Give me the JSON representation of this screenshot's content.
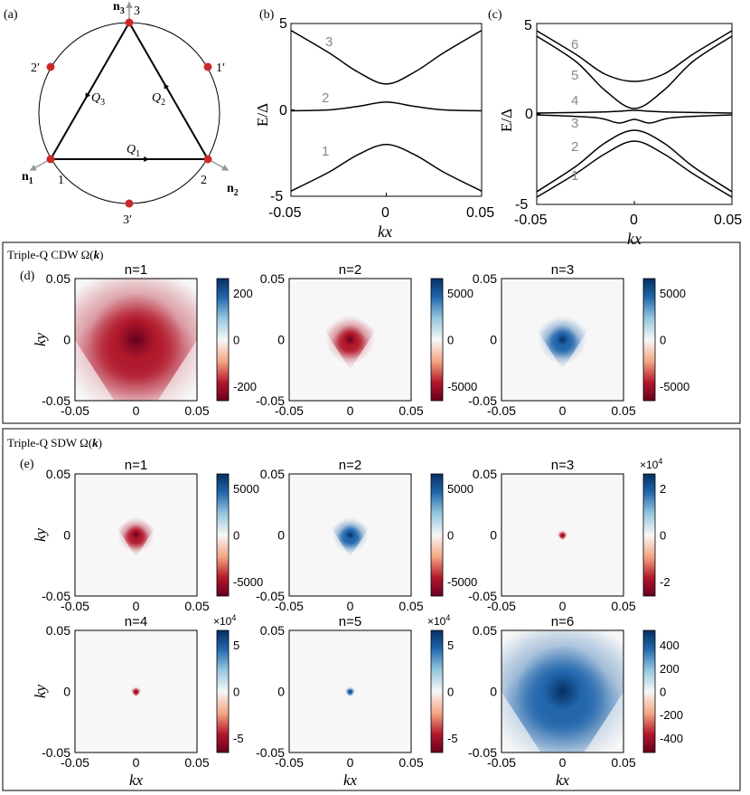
{
  "colors": {
    "red": "#b2182b",
    "white": "#f7f7f7",
    "blue": "#2166ac",
    "gray": "#888888",
    "dot": "#cc2a2a"
  },
  "panel_a": {
    "label": "(a)",
    "vertices": [
      "1",
      "2",
      "3"
    ],
    "primed": [
      "1′",
      "2′",
      "3′"
    ],
    "normals": [
      "n",
      "n",
      "n"
    ],
    "normal_subs": [
      "1",
      "2",
      "3"
    ],
    "q_labels": [
      "Q",
      "Q",
      "Q"
    ],
    "q_subs": [
      "1",
      "2",
      "3"
    ]
  },
  "panel_b": {
    "label": "(b)",
    "band_labels": [
      "1",
      "2",
      "3"
    ]
  },
  "panel_c": {
    "label": "(c)",
    "band_labels": [
      "1",
      "2",
      "3",
      "4",
      "5",
      "6"
    ]
  },
  "band_axes": {
    "ylabel": "E/Δ",
    "xlabel": "kx",
    "xticks": [
      "-0.05",
      "0",
      "0.05"
    ],
    "yticks": [
      "5",
      "0",
      "-5"
    ]
  },
  "panel_d": {
    "label": "(d)",
    "title": "Triple-Q CDW  Ω(",
    "title_k": "k",
    "title_end": ")"
  },
  "panel_e": {
    "label": "(e)",
    "title": "Triple-Q SDW  Ω(",
    "title_k": "k",
    "title_end": ")"
  },
  "map_axes": {
    "xlabel": "kx",
    "ylabel": "ky",
    "ticks": [
      "-0.05",
      "0",
      "0.05"
    ],
    "yticks": [
      "0.05",
      "0",
      "-0.05"
    ]
  },
  "chart_data": [
    {
      "type": "line",
      "title": "(b)",
      "xlabel": "kx",
      "ylabel": "E/Δ",
      "xlim": [
        -0.05,
        0.05
      ],
      "ylim": [
        -5,
        5
      ],
      "series": [
        {
          "name": "1",
          "points": [
            [
              -0.05,
              -4.7
            ],
            [
              -0.03,
              -3.6
            ],
            [
              -0.015,
              -2.6
            ],
            [
              0,
              -2.0
            ],
            [
              0.015,
              -2.6
            ],
            [
              0.03,
              -3.6
            ],
            [
              0.05,
              -4.7
            ]
          ]
        },
        {
          "name": "2",
          "points": [
            [
              -0.05,
              -0.05
            ],
            [
              -0.03,
              0.0
            ],
            [
              -0.015,
              0.2
            ],
            [
              0,
              0.45
            ],
            [
              0.015,
              0.2
            ],
            [
              0.03,
              0.0
            ],
            [
              0.05,
              -0.05
            ]
          ]
        },
        {
          "name": "3",
          "points": [
            [
              -0.05,
              4.6
            ],
            [
              -0.03,
              3.3
            ],
            [
              -0.015,
              2.2
            ],
            [
              0,
              1.5
            ],
            [
              0.015,
              2.2
            ],
            [
              0.03,
              3.3
            ],
            [
              0.05,
              4.6
            ]
          ]
        }
      ]
    },
    {
      "type": "line",
      "title": "(c)",
      "xlabel": "kx",
      "ylabel": "E/Δ",
      "xlim": [
        -0.05,
        0.05
      ],
      "ylim": [
        -5,
        5
      ],
      "series": [
        {
          "name": "1",
          "points": [
            [
              -0.05,
              -4.6
            ],
            [
              -0.03,
              -3.3
            ],
            [
              -0.015,
              -2.2
            ],
            [
              0,
              -1.5
            ],
            [
              0.015,
              -2.2
            ],
            [
              0.03,
              -3.3
            ],
            [
              0.05,
              -4.6
            ]
          ]
        },
        {
          "name": "2",
          "points": [
            [
              -0.05,
              -4.3
            ],
            [
              -0.03,
              -2.9
            ],
            [
              -0.015,
              -1.6
            ],
            [
              0,
              -0.9
            ],
            [
              0.015,
              -1.6
            ],
            [
              0.03,
              -2.9
            ],
            [
              0.05,
              -4.3
            ]
          ]
        },
        {
          "name": "3",
          "points": [
            [
              -0.05,
              -0.05
            ],
            [
              -0.02,
              -0.2
            ],
            [
              -0.008,
              -0.5
            ],
            [
              0,
              -0.3
            ],
            [
              0.008,
              -0.5
            ],
            [
              0.02,
              -0.2
            ],
            [
              0.05,
              -0.05
            ]
          ]
        },
        {
          "name": "4",
          "points": [
            [
              -0.05,
              0.05
            ],
            [
              -0.02,
              0.1
            ],
            [
              -0.008,
              0.15
            ],
            [
              0,
              0.2
            ],
            [
              0.008,
              0.15
            ],
            [
              0.02,
              0.1
            ],
            [
              0.05,
              0.05
            ]
          ]
        },
        {
          "name": "5",
          "points": [
            [
              -0.05,
              4.3
            ],
            [
              -0.03,
              2.9
            ],
            [
              -0.015,
              1.3
            ],
            [
              0,
              0.3
            ],
            [
              0.015,
              1.3
            ],
            [
              0.03,
              2.9
            ],
            [
              0.05,
              4.3
            ]
          ]
        },
        {
          "name": "6",
          "points": [
            [
              -0.05,
              4.6
            ],
            [
              -0.03,
              3.3
            ],
            [
              -0.015,
              2.2
            ],
            [
              0,
              1.8
            ],
            [
              0.015,
              2.2
            ],
            [
              0.03,
              3.3
            ],
            [
              0.05,
              4.6
            ]
          ]
        }
      ]
    },
    {
      "type": "heatmap",
      "title": "n=1",
      "group": "Triple-Q CDW",
      "xlabel": "",
      "ylabel": "ky",
      "xlim": [
        -0.05,
        0.05
      ],
      "ylim": [
        -0.05,
        0.05
      ],
      "colorbar_range": [
        -300,
        300
      ],
      "colorbar_ticks": [
        "200",
        "0",
        "-200"
      ],
      "peak_value": -300,
      "peak_kx": 0,
      "peak_ky": 0,
      "sign": "negative",
      "spread": "wide triangular"
    },
    {
      "type": "heatmap",
      "title": "n=2",
      "group": "Triple-Q CDW",
      "xlim": [
        -0.05,
        0.05
      ],
      "ylim": [
        -0.05,
        0.05
      ],
      "colorbar_range": [
        -6000,
        6000
      ],
      "colorbar_ticks": [
        "5000",
        "0",
        "-5000"
      ],
      "peak_value": -6000,
      "peak_kx": 0,
      "peak_ky": 0,
      "sign": "negative",
      "spread": "medium"
    },
    {
      "type": "heatmap",
      "title": "n=3",
      "group": "Triple-Q CDW",
      "xlim": [
        -0.05,
        0.05
      ],
      "ylim": [
        -0.05,
        0.05
      ],
      "colorbar_range": [
        -6000,
        6000
      ],
      "colorbar_ticks": [
        "5000",
        "0",
        "-5000"
      ],
      "peak_value": 6000,
      "peak_kx": 0,
      "peak_ky": 0,
      "sign": "positive",
      "spread": "medium"
    },
    {
      "type": "heatmap",
      "title": "n=1",
      "group": "Triple-Q SDW",
      "ylabel": "ky",
      "xlim": [
        -0.05,
        0.05
      ],
      "ylim": [
        -0.05,
        0.05
      ],
      "colorbar_range": [
        -7000,
        7000
      ],
      "colorbar_ticks": [
        "5000",
        "0",
        "-5000"
      ],
      "peak_value": -7000,
      "peak_kx": 0,
      "peak_ky": 0,
      "sign": "negative",
      "spread": "small"
    },
    {
      "type": "heatmap",
      "title": "n=2",
      "group": "Triple-Q SDW",
      "xlim": [
        -0.05,
        0.05
      ],
      "ylim": [
        -0.05,
        0.05
      ],
      "colorbar_range": [
        -7000,
        7000
      ],
      "colorbar_ticks": [
        "5000",
        "0",
        "-5000"
      ],
      "peak_value": 7000,
      "peak_kx": 0,
      "peak_ky": 0,
      "sign": "positive",
      "spread": "small"
    },
    {
      "type": "heatmap",
      "title": "n=3",
      "group": "Triple-Q SDW",
      "xlim": [
        -0.05,
        0.05
      ],
      "ylim": [
        -0.05,
        0.05
      ],
      "colorbar_range": [
        -25000,
        25000
      ],
      "colorbar_ticks": [
        "2",
        "0",
        "-2"
      ],
      "colorbar_multiplier": "×10",
      "colorbar_exponent": "4",
      "peak_value": -25000,
      "peak_kx": 0,
      "peak_ky": 0,
      "sign": "negative",
      "spread": "tiny"
    },
    {
      "type": "heatmap",
      "title": "n=4",
      "group": "Triple-Q SDW",
      "xlabel": "kx",
      "ylabel": "ky",
      "xlim": [
        -0.05,
        0.05
      ],
      "ylim": [
        -0.05,
        0.05
      ],
      "colorbar_range": [
        -80000,
        80000
      ],
      "colorbar_ticks": [
        "5",
        "0",
        "-5"
      ],
      "colorbar_multiplier": "×10",
      "colorbar_exponent": "4",
      "peak_value": -80000,
      "peak_kx": 0,
      "peak_ky": 0,
      "sign": "negative",
      "spread": "tiny"
    },
    {
      "type": "heatmap",
      "title": "n=5",
      "group": "Triple-Q SDW",
      "xlabel": "kx",
      "xlim": [
        -0.05,
        0.05
      ],
      "ylim": [
        -0.05,
        0.05
      ],
      "colorbar_range": [
        -90000,
        90000
      ],
      "colorbar_ticks": [
        "5",
        "0",
        "-5"
      ],
      "colorbar_multiplier": "×10",
      "colorbar_exponent": "4",
      "peak_value": 90000,
      "peak_kx": 0,
      "peak_ky": 0,
      "sign": "positive",
      "spread": "tiny"
    },
    {
      "type": "heatmap",
      "title": "n=6",
      "group": "Triple-Q SDW",
      "xlabel": "kx",
      "xlim": [
        -0.05,
        0.05
      ],
      "ylim": [
        -0.05,
        0.05
      ],
      "colorbar_range": [
        -500,
        500
      ],
      "colorbar_ticks": [
        "400",
        "200",
        "0",
        "-200",
        "-400"
      ],
      "peak_value": 500,
      "peak_kx": 0,
      "peak_ky": 0,
      "sign": "positive",
      "spread": "wide triangular"
    }
  ]
}
